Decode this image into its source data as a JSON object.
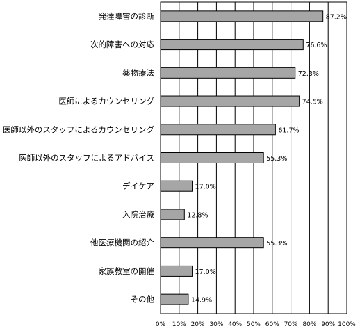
{
  "chart_data": {
    "type": "bar",
    "orientation": "horizontal",
    "categories": [
      "発達障害の診断",
      "二次的障害への対応",
      "薬物療法",
      "医師によるカウンセリング",
      "医師以外のスタッフによるカウンセリング",
      "医師以外のスタッフによるアドバイス",
      "デイケア",
      "入院治療",
      "他医療機関の紹介",
      "家族教室の開催",
      "その他"
    ],
    "values": [
      87.2,
      76.6,
      72.3,
      74.5,
      61.7,
      55.3,
      17.0,
      12.8,
      55.3,
      17.0,
      14.9
    ],
    "data_labels": [
      "87.2%",
      "76.6%",
      "72.3%",
      "74.5%",
      "61.7%",
      "55.3%",
      "17.0%",
      "12.8%",
      "55.3%",
      "17.0%",
      "14.9%"
    ],
    "xlim": [
      0,
      100
    ],
    "x_ticks": [
      "0%",
      "10%",
      "20%",
      "30%",
      "40%",
      "50%",
      "60%",
      "70%",
      "80%",
      "90%",
      "100%"
    ],
    "grid": true,
    "bar_color": "#a6a6a6",
    "bar_edge_color": "#000000",
    "title": "",
    "xlabel": "",
    "ylabel": ""
  }
}
